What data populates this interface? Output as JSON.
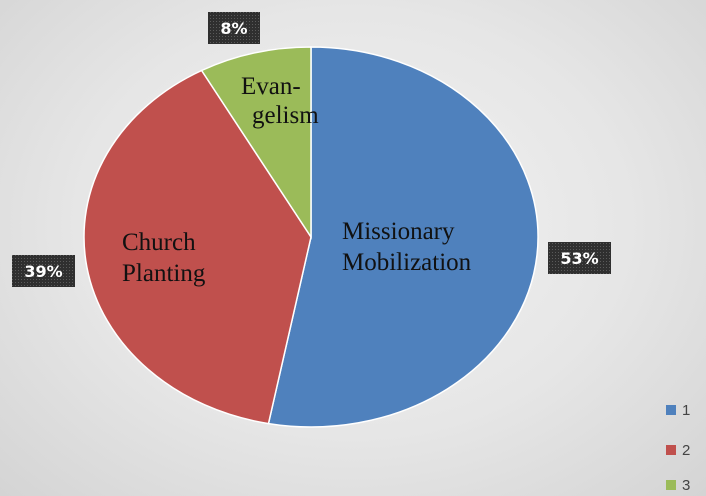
{
  "chart_data": {
    "type": "pie",
    "title": "",
    "slices": [
      {
        "legend": "1",
        "label_lines": [
          "Missionary",
          "Mobilization"
        ],
        "value": 53,
        "data_label": "53%",
        "color": "#4f81bd"
      },
      {
        "legend": "2",
        "label_lines": [
          "Church",
          "Planting"
        ],
        "value": 39,
        "data_label": "39%",
        "color": "#c0504d"
      },
      {
        "legend": "3",
        "label_lines": [
          "Evan-",
          "gelism"
        ],
        "value": 8,
        "data_label": "8%",
        "color": "#9bbb59"
      }
    ],
    "legend_position": "bottom-right",
    "data_label_style": "dark-box",
    "start": "12 o'clock",
    "direction": "clockwise"
  }
}
